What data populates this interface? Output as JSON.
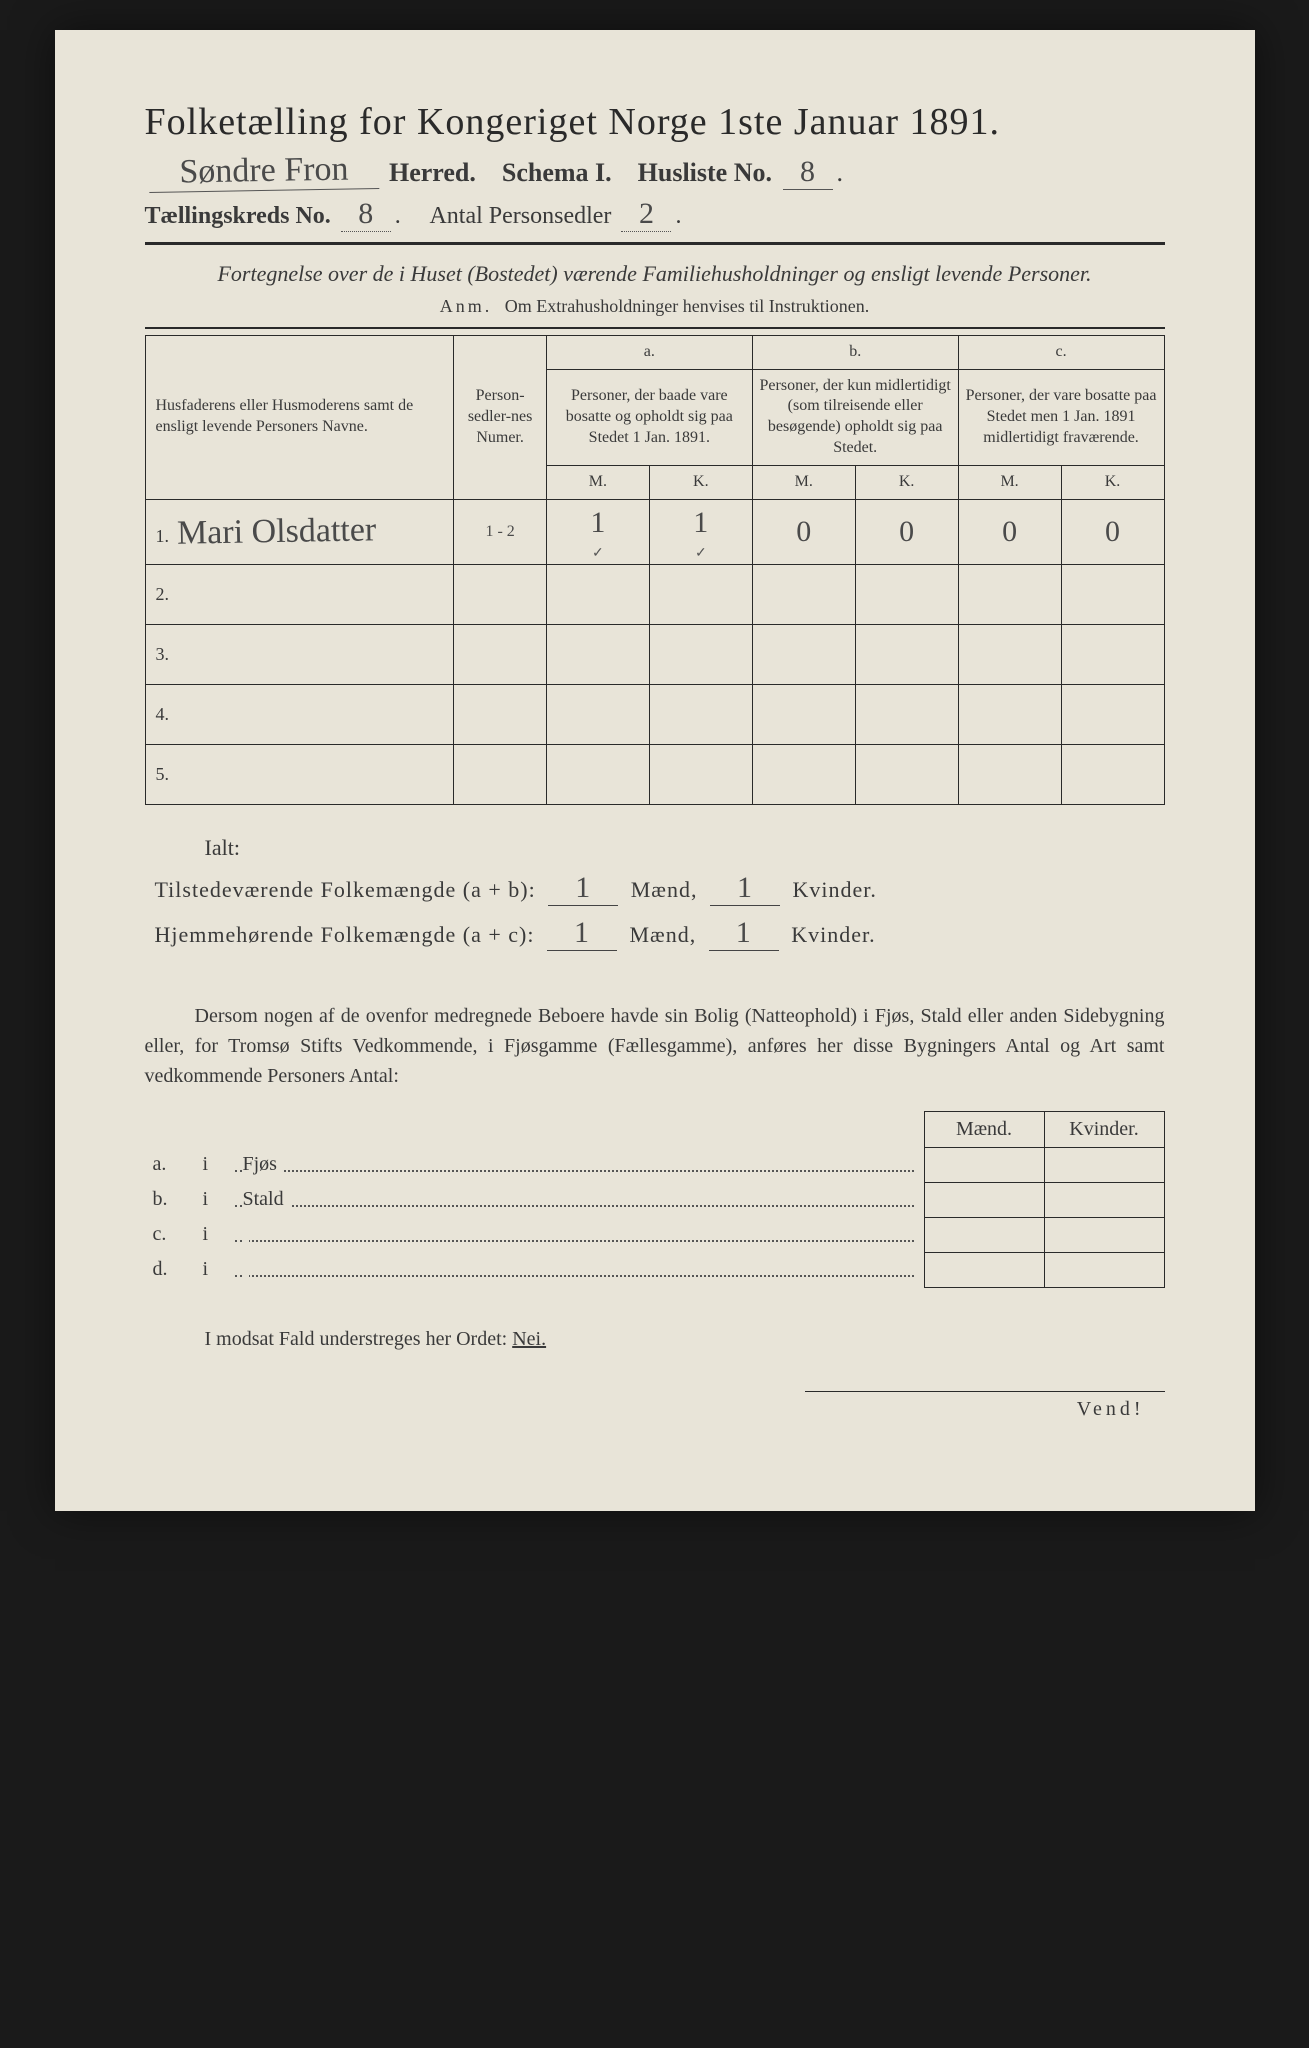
{
  "title": "Folketælling for Kongeriget Norge 1ste Januar 1891.",
  "header": {
    "herred_hw": "Søndre Fron",
    "herred_label": "Herred.",
    "schema": "Schema I.",
    "husliste_label": "Husliste No.",
    "husliste_no": "8",
    "kreds_label": "Tællingskreds No.",
    "kreds_no": "8",
    "antal_label": "Antal Personsedler",
    "antal_no": "2"
  },
  "subtitle": "Fortegnelse over de i Huset (Bostedet) værende Familiehusholdninger og ensligt levende Personer.",
  "anm_label": "Anm.",
  "anm_text": "Om Extrahusholdninger henvises til Instruktionen.",
  "table": {
    "head": {
      "name": "Husfaderens eller Husmoderens samt de ensligt levende Personers Navne.",
      "num": "Person-sedler-nes Numer.",
      "a_top": "a.",
      "a": "Personer, der baade vare bosatte og opholdt sig paa Stedet 1 Jan. 1891.",
      "b_top": "b.",
      "b": "Personer, der kun midlertidigt (som tilreisende eller besøgende) opholdt sig paa Stedet.",
      "c_top": "c.",
      "c": "Personer, der vare bosatte paa Stedet men 1 Jan. 1891 midlertidigt fraværende.",
      "m": "M.",
      "k": "K."
    },
    "rows": [
      {
        "n": "1.",
        "name": "Mari Olsdatter",
        "num": "1 - 2",
        "am": "1",
        "ak": "1",
        "bm": "0",
        "bk": "0",
        "cm": "0",
        "ck": "0",
        "check": true
      },
      {
        "n": "2.",
        "name": "",
        "num": "",
        "am": "",
        "ak": "",
        "bm": "",
        "bk": "",
        "cm": "",
        "ck": "",
        "check": false
      },
      {
        "n": "3.",
        "name": "",
        "num": "",
        "am": "",
        "ak": "",
        "bm": "",
        "bk": "",
        "cm": "",
        "ck": "",
        "check": false
      },
      {
        "n": "4.",
        "name": "",
        "num": "",
        "am": "",
        "ak": "",
        "bm": "",
        "bk": "",
        "cm": "",
        "ck": "",
        "check": false
      },
      {
        "n": "5.",
        "name": "",
        "num": "",
        "am": "",
        "ak": "",
        "bm": "",
        "bk": "",
        "cm": "",
        "ck": "",
        "check": false
      }
    ]
  },
  "ialt": "Ialt:",
  "totals": {
    "line1_label": "Tilstedeværende Folkemængde (a + b):",
    "line2_label": "Hjemmehørende Folkemængde (a + c):",
    "maend": "Mænd,",
    "kvinder": "Kvinder.",
    "v1m": "1",
    "v1k": "1",
    "v2m": "1",
    "v2k": "1"
  },
  "para": "Dersom nogen af de ovenfor medregnede Beboere havde sin Bolig (Natteophold) i Fjøs, Stald eller anden Sidebygning eller, for Tromsø Stifts Vedkommende, i Fjøsgamme (Fællesgamme), anføres her disse Bygningers Antal og Art samt vedkommende Personers Antal:",
  "lower": {
    "maend": "Mænd.",
    "kvinder": "Kvinder.",
    "rows": [
      {
        "lab": "a.",
        "i": "i",
        "txt": "Fjøs"
      },
      {
        "lab": "b.",
        "i": "i",
        "txt": "Stald"
      },
      {
        "lab": "c.",
        "i": "i",
        "txt": ""
      },
      {
        "lab": "d.",
        "i": "i",
        "txt": ""
      }
    ]
  },
  "footer_line": "I modsat Fald understreges her Ordet:",
  "nei": "Nei.",
  "vend": "Vend!"
}
